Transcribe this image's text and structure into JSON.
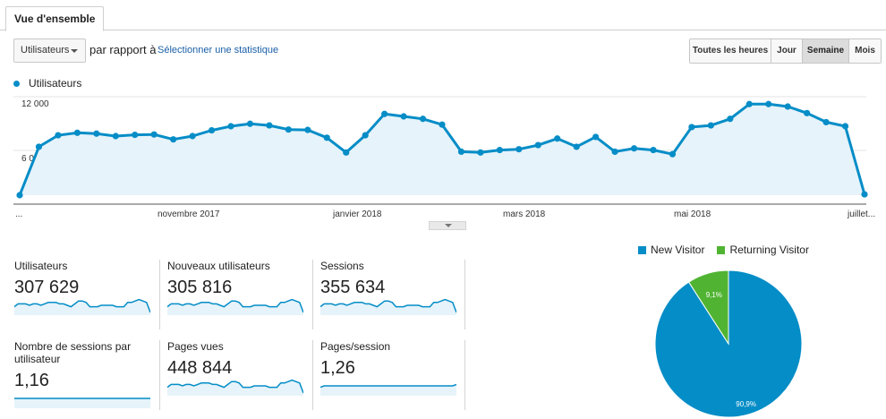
{
  "tab": {
    "label": "Vue d'ensemble"
  },
  "controls": {
    "metric_select": "Utilisateurs",
    "compare_text": "par rapport à",
    "select_stat_link": "Sélectionner une statistique",
    "granularity": [
      {
        "label": "Toutes les heures",
        "active": false
      },
      {
        "label": "Jour",
        "active": false
      },
      {
        "label": "Semaine",
        "active": true
      },
      {
        "label": "Mois",
        "active": false
      }
    ]
  },
  "colors": {
    "primary": "#058dc7",
    "secondary": "#50b432",
    "area_fill": "#e6f3fa"
  },
  "chart_data": [
    {
      "type": "area",
      "series": [
        {
          "name": "Utilisateurs",
          "values": [
            0,
            5900,
            7300,
            7600,
            7500,
            7200,
            7350,
            7400,
            6800,
            7200,
            7900,
            8400,
            8700,
            8500,
            8000,
            7950,
            7000,
            5200,
            7300,
            9900,
            9600,
            9300,
            8600,
            5300,
            5200,
            5500,
            5600,
            6100,
            6900,
            5900,
            7100,
            5300,
            5700,
            5500,
            5000,
            8300,
            8500,
            9300,
            11100,
            11100,
            10800,
            10000,
            8900,
            8400,
            100
          ]
        }
      ],
      "legend": "Utilisateurs",
      "x_tick_labels": [
        "...",
        "novembre 2017",
        "janvier 2018",
        "mars 2018",
        "mai 2018",
        "juillet..."
      ],
      "y_tick_labels": [
        "12 000",
        "6 000"
      ],
      "ylim": [
        0,
        12000
      ],
      "grid": true
    },
    {
      "type": "pie",
      "slices": [
        {
          "name": "New Visitor",
          "value": 90.9,
          "label": "90,9%"
        },
        {
          "name": "Returning Visitor",
          "value": 9.1,
          "label": "9,1%"
        }
      ],
      "legend_placement": "top"
    }
  ],
  "metrics": [
    {
      "label": "Utilisateurs",
      "value": "307 629",
      "spark": [
        4,
        6,
        6,
        6,
        5,
        6,
        6,
        5,
        6,
        7,
        7,
        7,
        6,
        6,
        5,
        4,
        6,
        8,
        8,
        7,
        4,
        4,
        4,
        5,
        5,
        5,
        5,
        4,
        4,
        4,
        7,
        7,
        8,
        9,
        8,
        7,
        0
      ]
    },
    {
      "label": "Nouveaux utilisateurs",
      "value": "305 816",
      "spark": [
        4,
        6,
        6,
        6,
        5,
        6,
        6,
        5,
        6,
        7,
        7,
        7,
        6,
        6,
        5,
        4,
        6,
        8,
        8,
        7,
        4,
        4,
        4,
        5,
        5,
        5,
        5,
        4,
        4,
        4,
        7,
        7,
        8,
        9,
        8,
        7,
        0
      ]
    },
    {
      "label": "Sessions",
      "value": "355 634",
      "spark": [
        4,
        6,
        6,
        6,
        5,
        6,
        6,
        5,
        6,
        7,
        7,
        7,
        6,
        6,
        5,
        4,
        6,
        8,
        8,
        7,
        4,
        4,
        4,
        5,
        5,
        5,
        5,
        4,
        4,
        4,
        7,
        7,
        8,
        9,
        8,
        7,
        0
      ]
    },
    {
      "label": "Nombre de sessions par utilisateur",
      "value": "1,16",
      "spark": [
        5,
        5,
        5,
        5,
        5,
        5,
        5,
        5,
        5,
        5,
        5,
        5,
        5,
        5,
        5,
        5,
        5,
        5,
        5,
        5,
        5,
        5,
        5,
        5,
        5,
        5,
        5,
        5,
        5,
        5,
        5,
        5,
        5,
        5,
        5,
        5,
        5
      ]
    },
    {
      "label": "Pages vues",
      "value": "448 844",
      "spark": [
        4,
        6,
        6,
        6,
        5,
        6,
        6,
        5,
        6,
        7,
        7,
        7,
        6,
        6,
        5,
        4,
        6,
        8,
        8,
        7,
        4,
        4,
        4,
        5,
        5,
        5,
        5,
        4,
        4,
        4,
        7,
        7,
        8,
        9,
        8,
        7,
        0
      ]
    },
    {
      "label": "Pages/session",
      "value": "1,26",
      "spark": [
        4,
        5,
        5,
        5,
        5,
        5,
        5,
        5,
        5,
        5,
        5,
        5,
        5,
        5,
        5,
        5,
        5,
        5,
        5,
        5,
        5,
        5,
        5,
        5,
        5,
        5,
        5,
        5,
        5,
        5,
        5,
        5,
        5,
        5,
        5,
        5,
        6
      ]
    }
  ]
}
